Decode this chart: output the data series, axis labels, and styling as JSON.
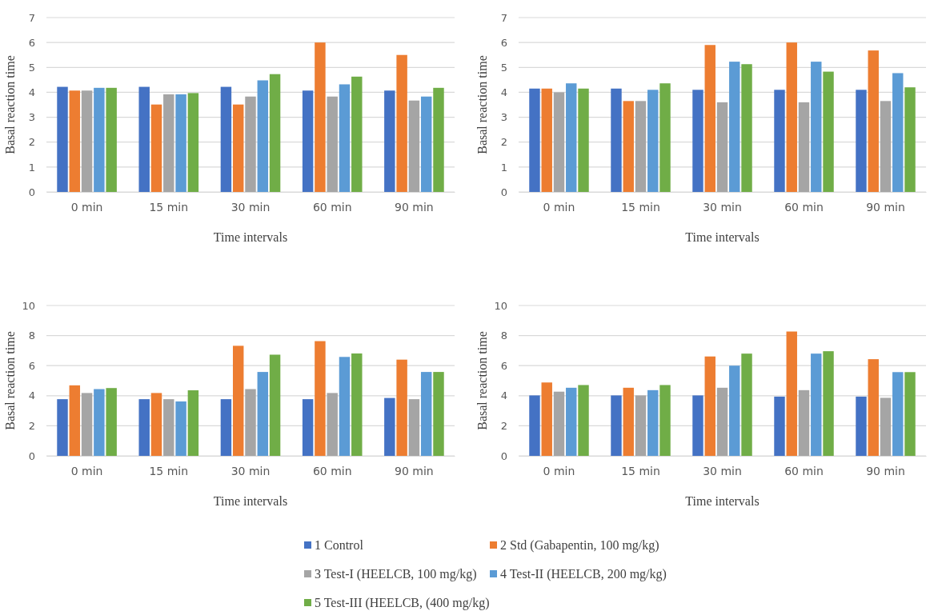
{
  "chart_data": [
    {
      "type": "bar",
      "xlabel": "Time intervals",
      "ylabel": "Basal reaction time",
      "categories": [
        "0 min",
        "15 min",
        "30 min",
        "60 min",
        "90 min"
      ],
      "ylim": [
        0,
        7
      ],
      "yticks": [
        0,
        1,
        2,
        3,
        4,
        5,
        6,
        7
      ],
      "grid": "y",
      "series": [
        {
          "color": "#4472c4",
          "values": [
            4.22,
            4.22,
            4.22,
            4.07,
            4.07
          ]
        },
        {
          "color": "#ed7d31",
          "values": [
            4.07,
            3.51,
            3.51,
            6.0,
            5.5
          ]
        },
        {
          "color": "#a5a5a5",
          "values": [
            4.07,
            3.92,
            3.83,
            3.83,
            3.67
          ]
        },
        {
          "color": "#5b9bd5",
          "values": [
            4.18,
            3.92,
            4.48,
            4.32,
            3.83
          ]
        },
        {
          "color": "#70ad47",
          "values": [
            4.18,
            3.97,
            4.73,
            4.63,
            4.18
          ]
        }
      ]
    },
    {
      "type": "bar",
      "xlabel": "Time intervals",
      "ylabel": "Basal reaction time",
      "categories": [
        "0 min",
        "15 min",
        "30 min",
        "60 min",
        "90 min"
      ],
      "ylim": [
        0,
        7
      ],
      "yticks": [
        0,
        1,
        2,
        3,
        4,
        5,
        6,
        7
      ],
      "grid": "y",
      "series": [
        {
          "color": "#4472c4",
          "values": [
            4.15,
            4.15,
            4.1,
            4.1,
            4.1
          ]
        },
        {
          "color": "#ed7d31",
          "values": [
            4.15,
            3.65,
            5.9,
            6.0,
            5.68
          ]
        },
        {
          "color": "#a5a5a5",
          "values": [
            4.0,
            3.65,
            3.6,
            3.6,
            3.65
          ]
        },
        {
          "color": "#5b9bd5",
          "values": [
            4.36,
            4.1,
            5.23,
            5.23,
            4.77
          ]
        },
        {
          "color": "#70ad47",
          "values": [
            4.15,
            4.36,
            5.13,
            4.83,
            4.2
          ]
        }
      ]
    },
    {
      "type": "bar",
      "xlabel": "Time intervals",
      "ylabel": "Basal reaction time",
      "categories": [
        "0 min",
        "15 min",
        "30 min",
        "60 min",
        "90 min"
      ],
      "ylim": [
        0,
        10
      ],
      "yticks": [
        0,
        2,
        4,
        6,
        8,
        10
      ],
      "grid": "y",
      "series": [
        {
          "color": "#4472c4",
          "values": [
            3.77,
            3.77,
            3.77,
            3.77,
            3.85
          ]
        },
        {
          "color": "#ed7d31",
          "values": [
            4.69,
            4.18,
            7.32,
            7.63,
            6.4
          ]
        },
        {
          "color": "#a5a5a5",
          "values": [
            4.18,
            3.77,
            4.44,
            4.18,
            3.77
          ]
        },
        {
          "color": "#5b9bd5",
          "values": [
            4.44,
            3.62,
            5.58,
            6.58,
            5.58
          ]
        },
        {
          "color": "#70ad47",
          "values": [
            4.51,
            4.36,
            6.73,
            6.81,
            5.58
          ]
        }
      ]
    },
    {
      "type": "bar",
      "xlabel": "Time intervals",
      "ylabel": "Basal reaction time",
      "categories": [
        "0 min",
        "15 min",
        "30 min",
        "60 min",
        "90 min"
      ],
      "ylim": [
        0,
        10
      ],
      "yticks": [
        0,
        2,
        4,
        6,
        8,
        10
      ],
      "grid": "y",
      "legend": "bottom",
      "series": [
        {
          "name": "1 Control",
          "color": "#4472c4",
          "values": [
            4.02,
            4.02,
            4.02,
            3.94,
            3.94
          ]
        },
        {
          "name": "2 Std (Gabapentin, 100 mg/kg)",
          "color": "#ed7d31",
          "values": [
            4.88,
            4.53,
            6.61,
            8.27,
            6.43
          ]
        },
        {
          "name": "3 Test-I (HEELCB, 100 mg/kg)",
          "color": "#a5a5a5",
          "values": [
            4.27,
            4.02,
            4.53,
            4.37,
            3.86
          ]
        },
        {
          "name": "4 Test-II (HEELCB, 200 mg/kg)",
          "color": "#5b9bd5",
          "values": [
            4.53,
            4.37,
            6.0,
            6.8,
            5.57
          ]
        },
        {
          "name": "5 Test-III (HEELCB, (400 mg/kg)",
          "color": "#70ad47",
          "values": [
            4.71,
            4.71,
            6.8,
            6.96,
            5.57
          ]
        }
      ]
    }
  ]
}
